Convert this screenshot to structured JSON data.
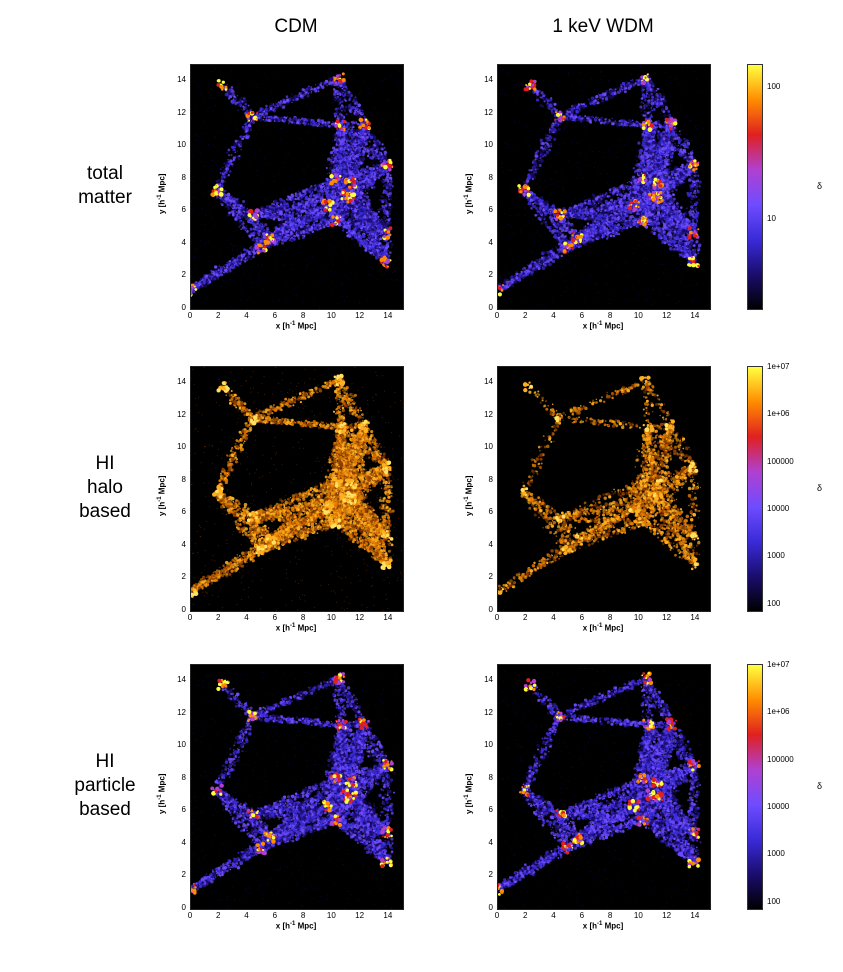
{
  "figure": {
    "columns": [
      {
        "title": "CDM"
      },
      {
        "title": "1 keV WDM"
      }
    ],
    "rows": [
      {
        "label_lines": [
          "total",
          "matter"
        ],
        "colormap": "dm",
        "colorbar": {
          "ticks": [
            "100",
            "10"
          ],
          "label": "δ"
        }
      },
      {
        "label_lines": [
          "HI",
          "halo",
          "based"
        ],
        "colormap": "hi",
        "colorbar": {
          "ticks": [
            "1e+07",
            "1e+06",
            "100000",
            "10000",
            "1000",
            "100"
          ],
          "label": "δ"
        }
      },
      {
        "label_lines": [
          "HI",
          "particle",
          "based"
        ],
        "colormap": "dm",
        "colorbar": {
          "ticks": [
            "1e+07",
            "1e+06",
            "100000",
            "10000",
            "1000",
            "100"
          ],
          "label": "δ"
        }
      }
    ],
    "axes": {
      "xlabel": "x [h-1 Mpc]",
      "ylabel": "y [h-1 Mpc]",
      "xticks": [
        "0",
        "2",
        "4",
        "6",
        "8",
        "10",
        "12",
        "14"
      ],
      "yticks": [
        "0",
        "2",
        "4",
        "6",
        "8",
        "10",
        "12",
        "14"
      ],
      "range": [
        0,
        15
      ]
    },
    "colors": {
      "background": "#000000",
      "dm_colormap": [
        "#000000",
        "#1a0d6e",
        "#3a2bd9",
        "#6f4cff",
        "#b040d0",
        "#e02020",
        "#ff8c00",
        "#ffff40"
      ],
      "hi_colormap": [
        "#000000",
        "#8a3d00",
        "#e07a00",
        "#ffb020",
        "#ffe060"
      ]
    }
  }
}
